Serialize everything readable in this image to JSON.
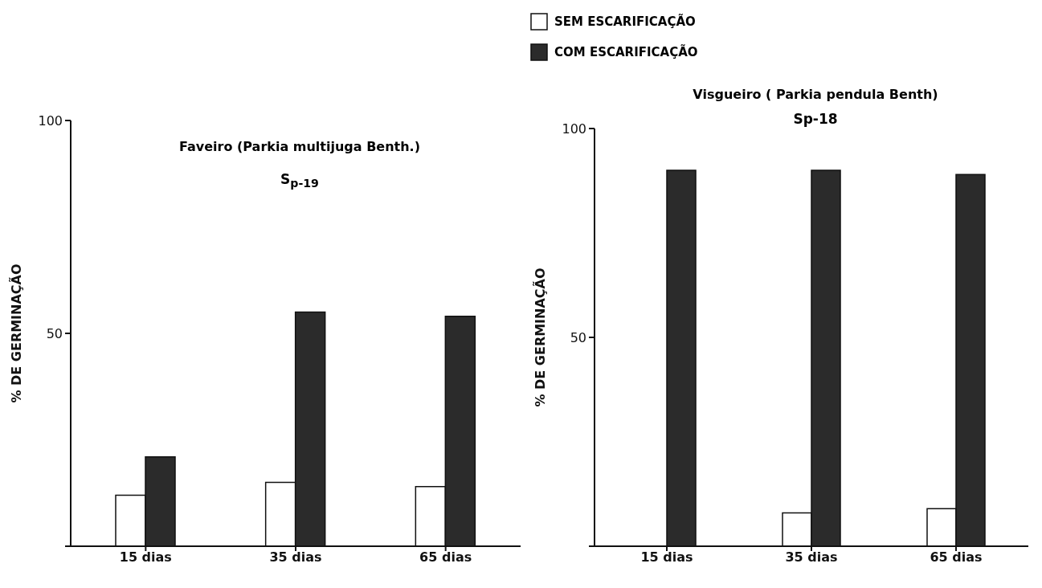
{
  "chart_data": [
    {
      "type": "bar",
      "title": "Faveiro (Parkia multijuga Benth.)",
      "subtitle": "S$_{p-19}$",
      "ylabel": "% DE GERMINAÇÃO",
      "categories": [
        "15 dias",
        "35 dias",
        "65 dias"
      ],
      "ylim": [
        0,
        100
      ],
      "yticks": [
        {
          "value": 0,
          "label": null
        },
        {
          "value": 50,
          "label": "50"
        },
        {
          "value": 100,
          "label": "100"
        }
      ],
      "legend": false,
      "series": [
        {
          "color": "#ffffff",
          "values": [
            12,
            15,
            14
          ]
        },
        {
          "color": "#2b2b2b",
          "values": [
            21,
            55,
            54
          ]
        }
      ]
    },
    {
      "type": "bar",
      "title": "Visgueiro ( Parkia pendula  Benth)",
      "subtitle": "Sp-18",
      "ylabel": "% DE GERMINAÇÃO",
      "categories": [
        "15 dias",
        "35 dias",
        "65 dias"
      ],
      "ylim": [
        0,
        100
      ],
      "yticks": [
        {
          "value": 0,
          "label": null
        },
        {
          "value": 50,
          "label": "50"
        },
        {
          "value": 100,
          "label": "100"
        }
      ],
      "legend": "top left",
      "series": [
        {
          "name": "SEM ESCARIFICAÇÃO",
          "color": "#ffffff",
          "values": [
            0,
            8,
            9
          ]
        },
        {
          "name": "COM ESCARIFICAÇÃO",
          "color": "#2b2b2b",
          "values": [
            90,
            90,
            89
          ]
        }
      ]
    }
  ]
}
